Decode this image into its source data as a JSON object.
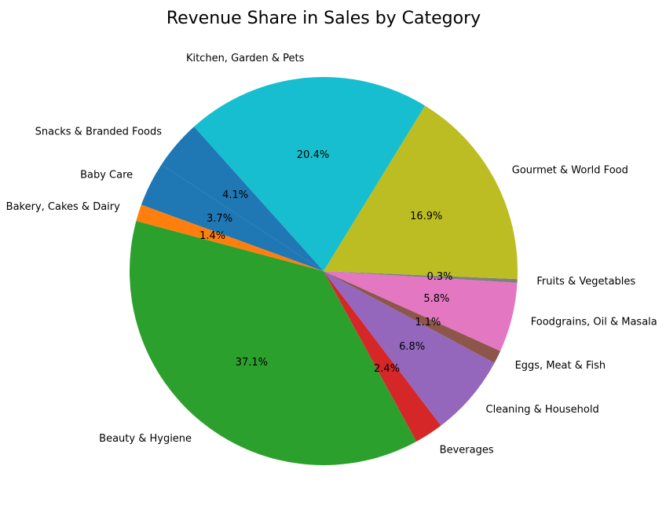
{
  "chart_data": {
    "type": "pie",
    "title": "Revenue Share in Sales by Category",
    "slices": [
      {
        "label": "Bakery, Cakes & Dairy",
        "value": 1.4,
        "pct_label": "1.4%",
        "color": "#ff7f0e"
      },
      {
        "label": "Beauty & Hygiene",
        "value": 37.1,
        "pct_label": "37.1%",
        "color": "#2ca02c"
      },
      {
        "label": "Beverages",
        "value": 2.4,
        "pct_label": "2.4%",
        "color": "#d62728"
      },
      {
        "label": "Cleaning & Household",
        "value": 6.8,
        "pct_label": "6.8%",
        "color": "#9467bd"
      },
      {
        "label": "Eggs, Meat & Fish",
        "value": 1.1,
        "pct_label": "1.1%",
        "color": "#8c564b"
      },
      {
        "label": "Foodgrains, Oil & Masala",
        "value": 5.8,
        "pct_label": "5.8%",
        "color": "#e377c2"
      },
      {
        "label": "Fruits & Vegetables",
        "value": 0.3,
        "pct_label": "0.3%",
        "color": "#7f7f7f"
      },
      {
        "label": "Gourmet & World Food",
        "value": 16.9,
        "pct_label": "16.9%",
        "color": "#bcbd22"
      },
      {
        "label": "Kitchen, Garden & Pets",
        "value": 20.4,
        "pct_label": "20.4%",
        "color": "#17becf"
      },
      {
        "label": "Snacks & Branded Foods",
        "value": 4.1,
        "pct_label": "4.1%",
        "color": "#1f77b4"
      },
      {
        "label": "Baby Care",
        "value": 3.7,
        "pct_label": "3.7%",
        "color": "#1f77b4"
      }
    ],
    "start_angle_deg": 160,
    "direction": "counterclockwise",
    "legend": "none"
  }
}
